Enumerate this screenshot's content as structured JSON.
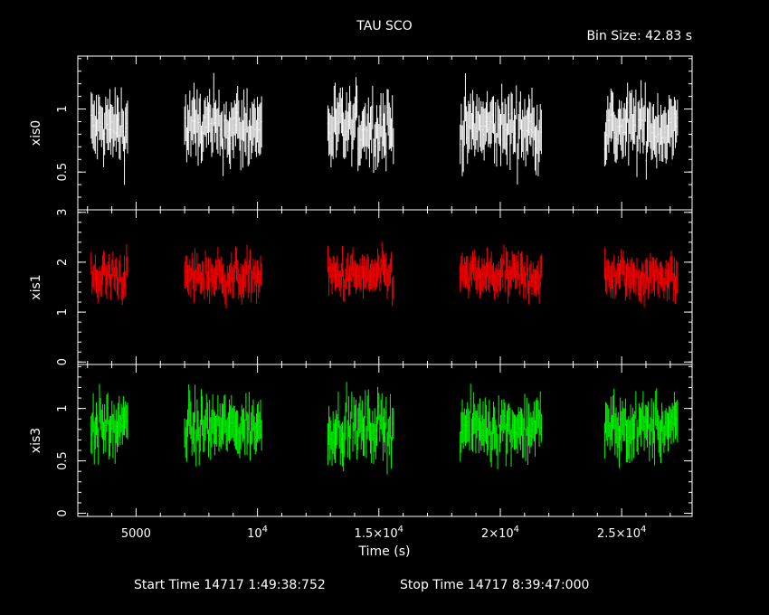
{
  "header": {
    "title": "TAU SCO",
    "bin_size": "Bin Size: 42.83 s"
  },
  "footer": {
    "start_time": "Start Time 14717  1:49:38:752",
    "stop_time": "Stop Time 14717  8:39:47:000"
  },
  "chart_data": {
    "type": "scatter",
    "title": "TAU SCO",
    "xlabel": "Time (s)",
    "xlim": [
      2600,
      27900
    ],
    "x_ticks": [
      {
        "value": 5000,
        "label": "5000"
      },
      {
        "value": 10000,
        "label": "10",
        "exp": "4"
      },
      {
        "value": 15000,
        "label": "1.5×10",
        "exp": "4"
      },
      {
        "value": 20000,
        "label": "2×10",
        "exp": "4"
      },
      {
        "value": 25000,
        "label": "2.5×10",
        "exp": "4"
      }
    ],
    "segments": [
      [
        3150,
        4650
      ],
      [
        7000,
        10200
      ],
      [
        12900,
        15600
      ],
      [
        18350,
        21700
      ],
      [
        24300,
        27300
      ]
    ],
    "bin_size_s": 42.83,
    "panels": [
      {
        "name": "xis0",
        "ylabel": "xis0",
        "color": "#ffffff",
        "ylim": [
          0.2,
          1.42
        ],
        "mean": 0.85,
        "spread": 0.1,
        "err": 0.17,
        "yticks": [
          {
            "value": 0.5,
            "label": "0.5"
          },
          {
            "value": 1,
            "label": "1"
          }
        ]
      },
      {
        "name": "xis1",
        "ylabel": "xis1",
        "color": "#ff0000",
        "ylim": [
          -0.05,
          3.05
        ],
        "mean": 1.72,
        "spread": 0.16,
        "err": 0.27,
        "yticks": [
          {
            "value": 0,
            "label": "0"
          },
          {
            "value": 1,
            "label": "1"
          },
          {
            "value": 2,
            "label": "2"
          },
          {
            "value": 3,
            "label": "3"
          }
        ]
      },
      {
        "name": "xis3",
        "ylabel": "xis3",
        "color": "#00ff00",
        "ylim": [
          -0.03,
          1.42
        ],
        "mean": 0.82,
        "spread": 0.1,
        "err": 0.17,
        "yticks": [
          {
            "value": 0,
            "label": "0"
          },
          {
            "value": 0.5,
            "label": "0.5"
          },
          {
            "value": 1,
            "label": "1"
          }
        ]
      }
    ]
  }
}
